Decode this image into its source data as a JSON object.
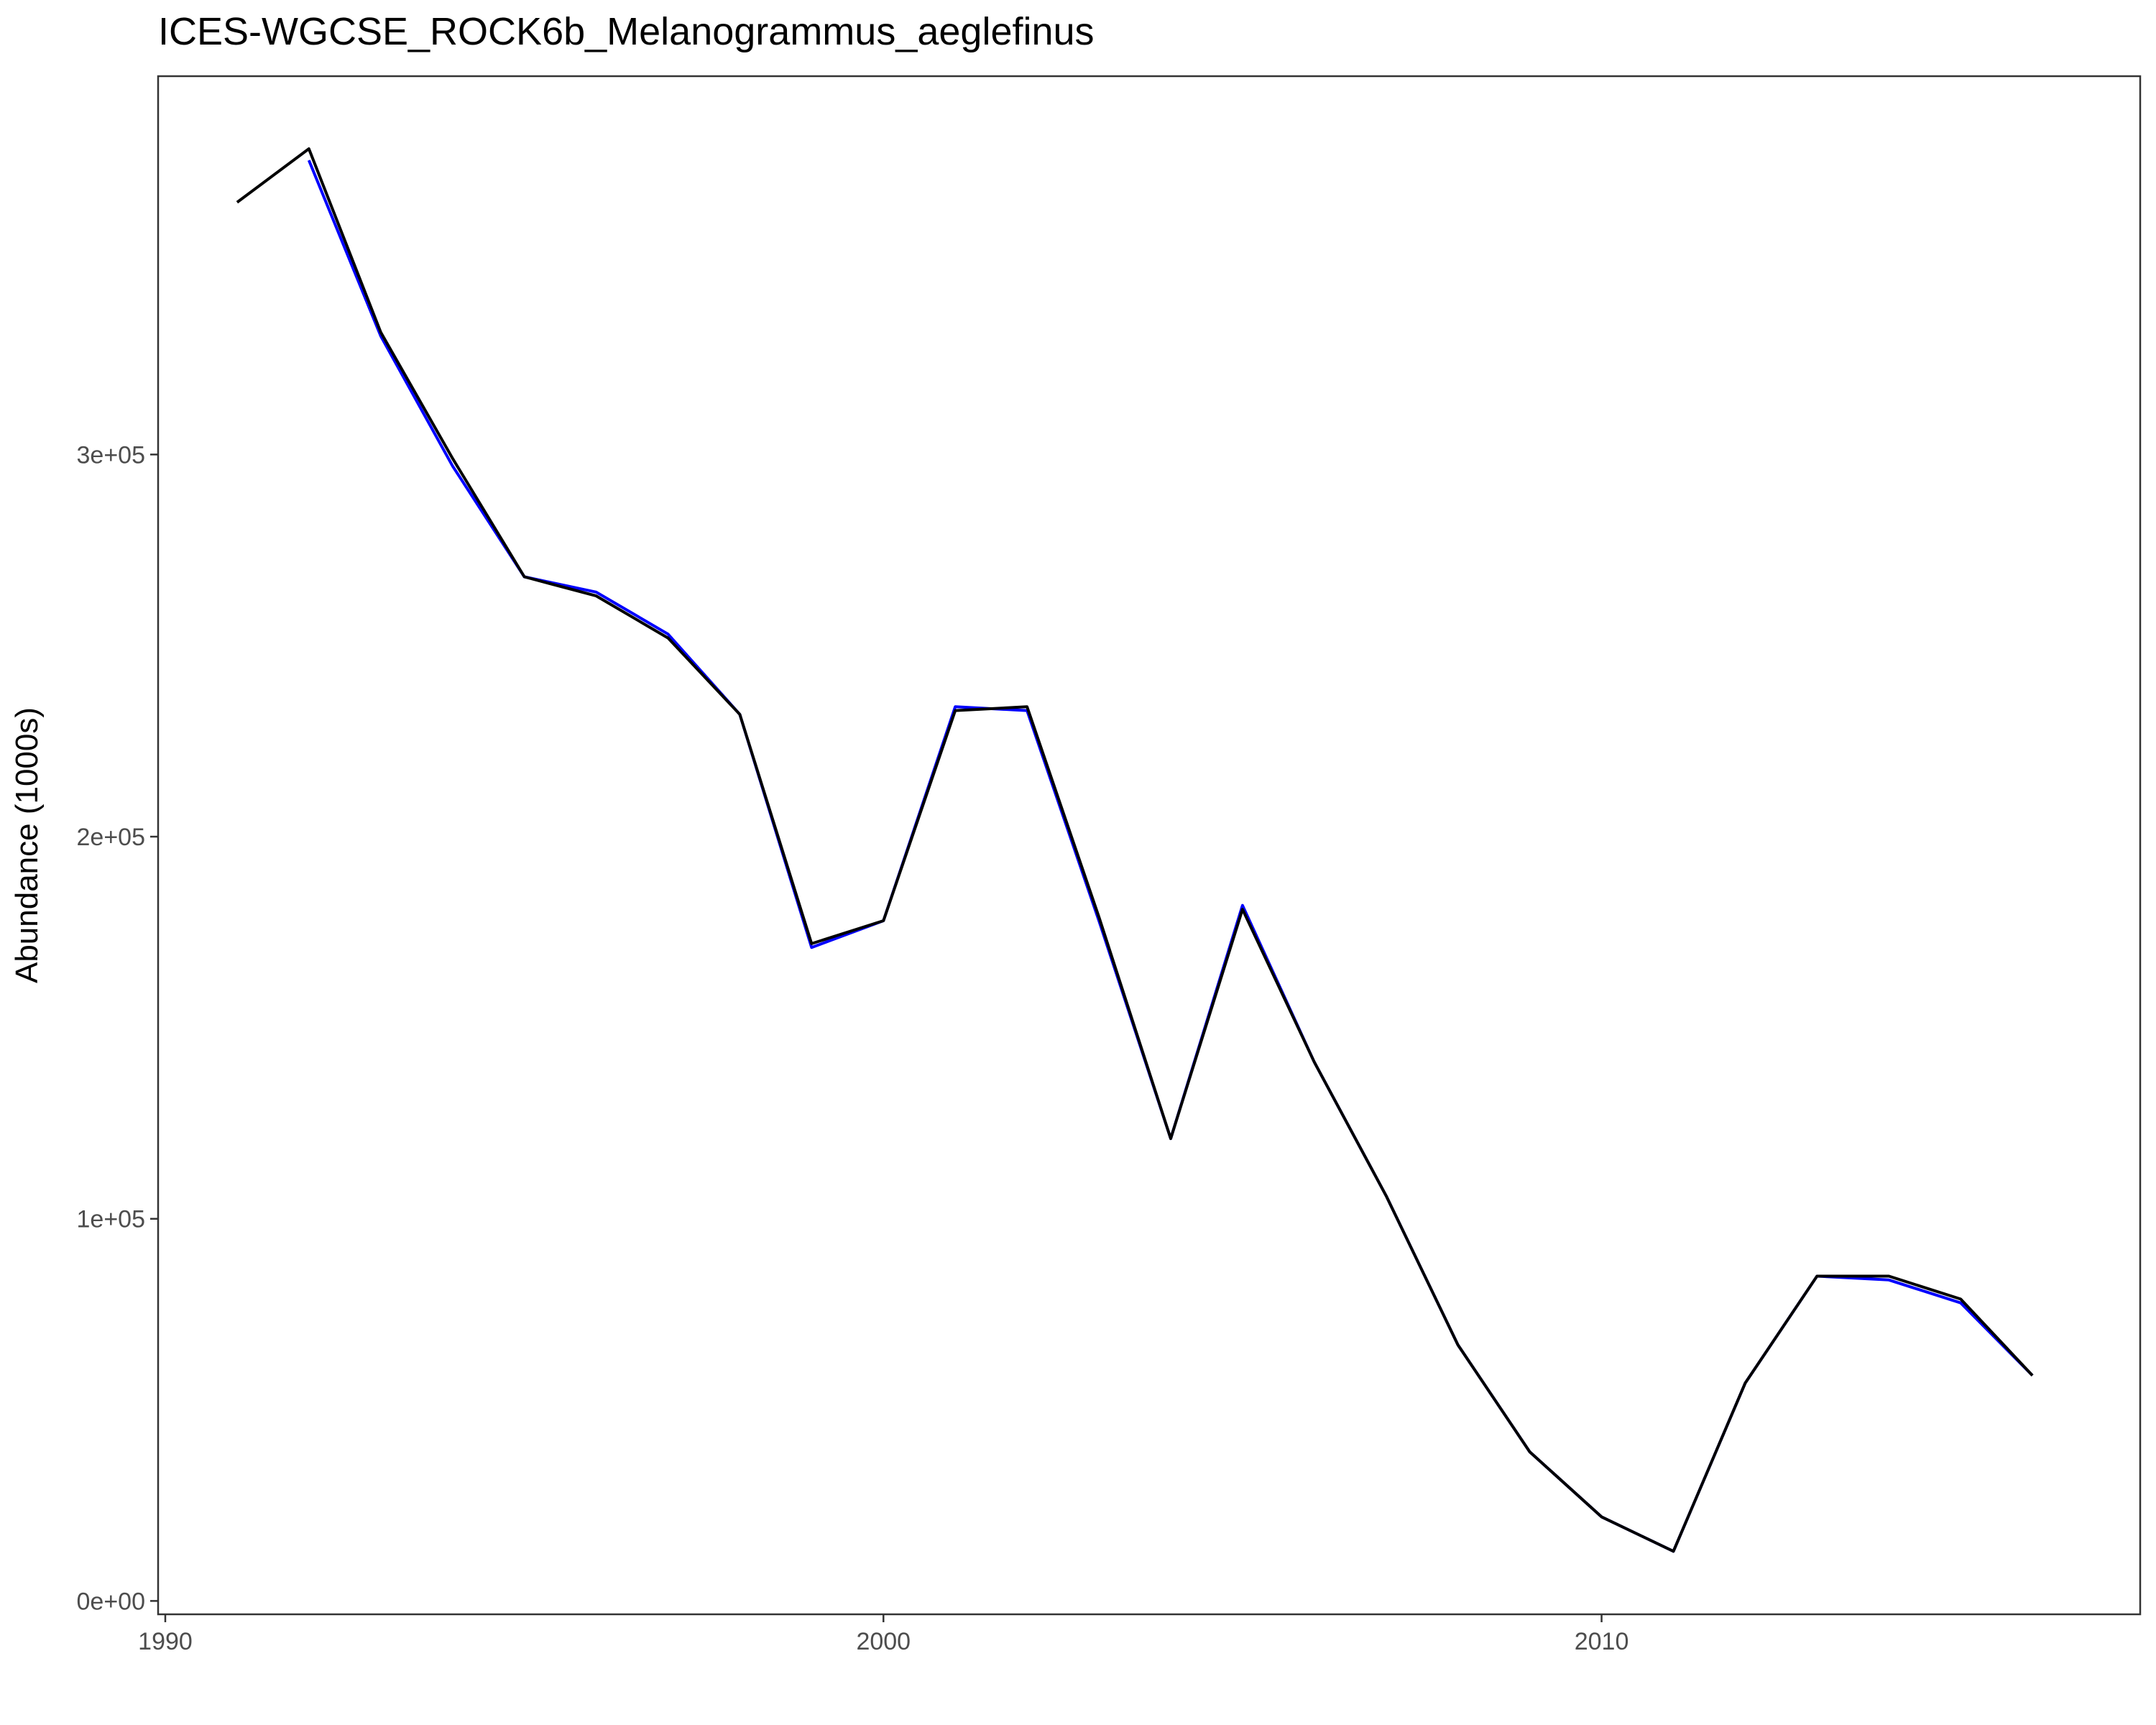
{
  "chart_data": {
    "type": "line",
    "title": "ICES-WGCSE_ROCK6b_Melanogrammus_aeglefinus",
    "xlabel": "",
    "ylabel": "Abundance (1000s)",
    "xlim": [
      1989.9,
      2017.5
    ],
    "ylim": [
      -3500,
      399000
    ],
    "x_ticks": [
      1990,
      2000,
      2010
    ],
    "x_tick_labels": [
      "1990",
      "2000",
      "2010"
    ],
    "y_ticks": [
      0,
      100000,
      200000,
      300000
    ],
    "y_tick_labels": [
      "0e+00",
      "1e+05",
      "2e+05",
      "3e+05"
    ],
    "grid": false,
    "legend": "none",
    "series": [
      {
        "color": "#0000ff",
        "x": [
          1992,
          1993,
          1994,
          1995,
          1996,
          1997,
          1998,
          1999,
          2000,
          2001,
          2002,
          2003,
          2004,
          2005,
          2006,
          2007,
          2008,
          2009,
          2010,
          2011,
          2012,
          2013,
          2014,
          2015,
          2016
        ],
        "y": [
          377000,
          331000,
          297000,
          268000,
          264000,
          253000,
          232000,
          171000,
          178000,
          234000,
          233000,
          178000,
          121000,
          182000,
          141000,
          106000,
          67000,
          39000,
          22000,
          13000,
          57000,
          85000,
          84000,
          78000,
          59000
        ]
      },
      {
        "color": "#000000",
        "x": [
          1991,
          1992,
          1993,
          1994,
          1995,
          1996,
          1997,
          1998,
          1999,
          2000,
          2001,
          2002,
          2003,
          2004,
          2005,
          2006,
          2007,
          2008,
          2009,
          2010,
          2011,
          2012,
          2013,
          2014,
          2015,
          2016
        ],
        "y": [
          366000,
          380000,
          332000,
          299000,
          268000,
          263000,
          252000,
          232000,
          172000,
          178000,
          233000,
          234000,
          179000,
          121000,
          181000,
          141000,
          106000,
          67000,
          39000,
          22000,
          13000,
          57000,
          85000,
          85000,
          79000,
          59000
        ]
      }
    ]
  }
}
